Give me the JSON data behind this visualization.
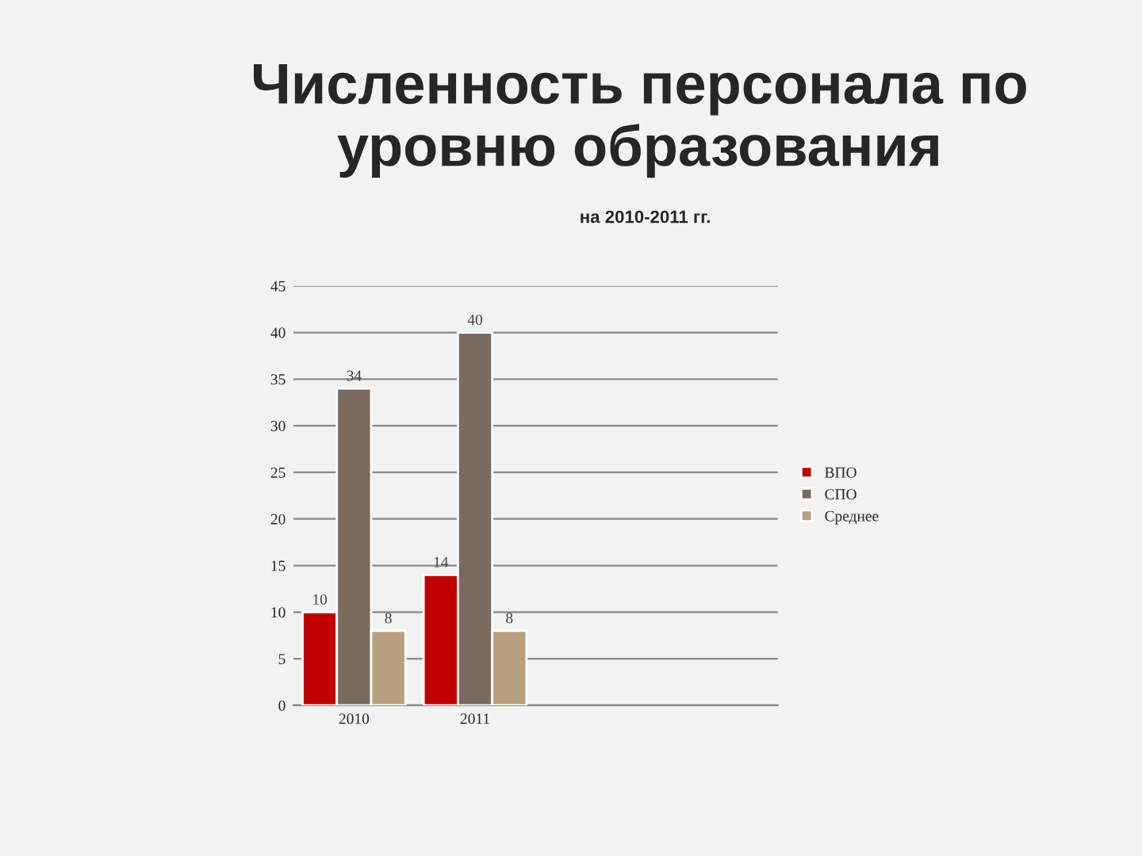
{
  "chart_data": {
    "type": "bar",
    "title": "Численность персонала по уровню образования",
    "subtitle": "на 2010-2011 гг.",
    "categories": [
      "2010",
      "2011",
      null,
      null
    ],
    "series": [
      {
        "name": "ВПО",
        "color": "#c00000",
        "values": [
          10,
          14,
          null,
          null
        ]
      },
      {
        "name": "СПО",
        "color": "#7a6a60",
        "values": [
          34,
          40,
          null,
          null
        ]
      },
      {
        "name": "Среднее",
        "color": "#b8a07e",
        "values": [
          8,
          8,
          null,
          null
        ]
      }
    ],
    "ylim": [
      0,
      45
    ],
    "yticks": [
      0,
      5,
      10,
      15,
      20,
      25,
      30,
      35,
      40,
      45
    ],
    "grid": "y",
    "legend": "right",
    "data_labels": true
  }
}
